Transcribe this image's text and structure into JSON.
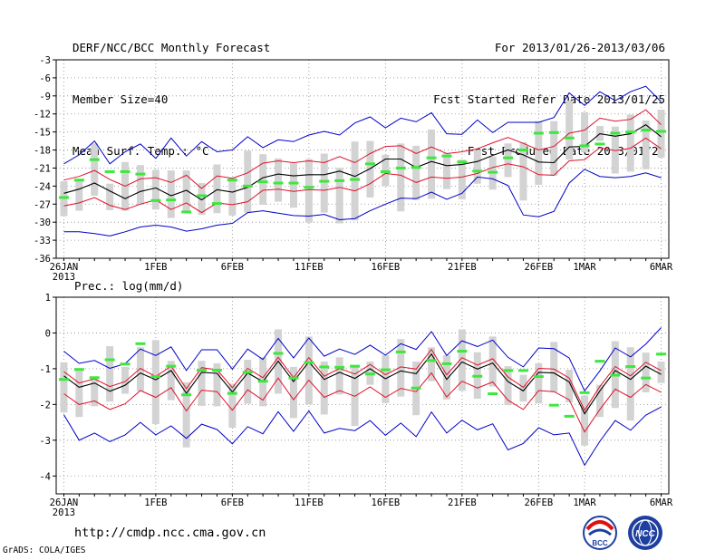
{
  "header": {
    "title": "DERF/NCC/BCC Monthly Forecast",
    "member_size": "Member Size=40",
    "variable": "Mean Surf. Temp.: °C",
    "period": "For 2013/01/26-2013/03/06",
    "fcst_started": "Fcst Started Refer Date 2013/01/25",
    "fcst_produced": "Fcst Produced Date 2013/01/26"
  },
  "footer": {
    "url": "http://cmdp.ncc.cma.gov.cn",
    "grads": "GrADS: COLA/IGES",
    "logo_left_text": "BCC",
    "logo_right_text": "NCC"
  },
  "colors": {
    "envelope": "#0000c8",
    "spread": "#e0102a",
    "mean": "#000000",
    "observed": "#3de83d",
    "box": "#d3d3d3",
    "grid": "#8c8c8c"
  },
  "chart_data": [
    {
      "type": "line",
      "title": "Mean Surf. Temp.: °C",
      "ylim": [
        -36,
        -3
      ],
      "yticks": [
        -3,
        -6,
        -9,
        -12,
        -15,
        -18,
        -21,
        -24,
        -27,
        -30,
        -33,
        -36
      ],
      "xlim": [
        -0.5,
        39.5
      ],
      "xticks": [
        {
          "i": 0,
          "label": "26JAN",
          "sub": "2013"
        },
        {
          "i": 6,
          "label": "1FEB"
        },
        {
          "i": 11,
          "label": "6FEB"
        },
        {
          "i": 16,
          "label": "11FEB"
        },
        {
          "i": 21,
          "label": "16FEB"
        },
        {
          "i": 26,
          "label": "21FEB"
        },
        {
          "i": 31,
          "label": "26FEB"
        },
        {
          "i": 34,
          "label": "1MAR"
        },
        {
          "i": 39,
          "label": "6MAR"
        }
      ],
      "series": [
        {
          "name": "mean",
          "values": [
            -25.2,
            -24.5,
            -23.5,
            -24.8,
            -26.1,
            -24.9,
            -24.3,
            -25.6,
            -24.7,
            -26.3,
            -24.6,
            -25.0,
            -24.2,
            -22.6,
            -22.0,
            -22.3,
            -22.1,
            -22.1,
            -21.5,
            -22.4,
            -21.1,
            -19.5,
            -19.5,
            -20.9,
            -19.9,
            -20.6,
            -20.4,
            -19.9,
            -18.9,
            -18.0,
            -18.8,
            -20.0,
            -20.1,
            -17.5,
            -17.4,
            -15.3,
            -15.7,
            -15.3,
            -13.8,
            -15.8
          ]
        },
        {
          "name": "upper",
          "values": [
            -23.0,
            -22.4,
            -21.4,
            -22.9,
            -24.0,
            -22.8,
            -22.6,
            -23.4,
            -22.2,
            -24.4,
            -22.3,
            -22.7,
            -21.8,
            -20.2,
            -19.8,
            -20.1,
            -19.8,
            -20.1,
            -19.1,
            -20.1,
            -18.6,
            -17.4,
            -17.3,
            -18.6,
            -17.5,
            -18.6,
            -18.3,
            -17.8,
            -16.8,
            -15.9,
            -16.9,
            -18.0,
            -17.4,
            -15.2,
            -14.7,
            -12.7,
            -13.2,
            -12.9,
            -11.3,
            -13.8
          ]
        },
        {
          "name": "lower",
          "values": [
            -27.3,
            -26.8,
            -25.9,
            -27.2,
            -27.9,
            -27.0,
            -26.3,
            -27.9,
            -26.8,
            -28.4,
            -26.8,
            -27.1,
            -26.6,
            -24.7,
            -24.5,
            -24.9,
            -24.6,
            -24.7,
            -24.2,
            -24.8,
            -23.6,
            -21.9,
            -22.2,
            -23.4,
            -22.5,
            -22.7,
            -22.5,
            -21.9,
            -20.9,
            -20.3,
            -20.8,
            -22.1,
            -22.2,
            -19.8,
            -19.6,
            -17.6,
            -18.1,
            -17.7,
            -16.0,
            -17.8
          ]
        },
        {
          "name": "max",
          "values": [
            -20.3,
            -18.8,
            -16.5,
            -20.3,
            -18.3,
            -17.0,
            -19.4,
            -16.0,
            -19.0,
            -16.6,
            -18.3,
            -18.0,
            -15.8,
            -17.6,
            -16.3,
            -16.6,
            -15.5,
            -14.9,
            -15.5,
            -13.5,
            -12.5,
            -14.3,
            -12.7,
            -13.3,
            -11.8,
            -15.3,
            -15.4,
            -13.0,
            -15.1,
            -13.4,
            -13.4,
            -13.4,
            -12.6,
            -8.5,
            -10.6,
            -8.3,
            -9.8,
            -8.3,
            -7.4,
            -10.0
          ]
        },
        {
          "name": "min",
          "values": [
            -31.6,
            -31.6,
            -31.9,
            -32.3,
            -31.6,
            -30.8,
            -30.5,
            -30.8,
            -31.5,
            -31.1,
            -30.5,
            -30.2,
            -28.4,
            -28.1,
            -28.5,
            -28.9,
            -29.0,
            -28.7,
            -29.6,
            -29.4,
            -28.1,
            -27.0,
            -26.0,
            -26.1,
            -25.0,
            -26.2,
            -25.2,
            -22.5,
            -22.8,
            -23.9,
            -28.8,
            -29.1,
            -28.2,
            -23.5,
            -21.2,
            -22.4,
            -22.6,
            -22.4,
            -21.8,
            -22.6
          ]
        },
        {
          "name": "box_top",
          "values": [
            -23.2,
            -22.8,
            -16.9,
            -23.6,
            -20.0,
            -20.5,
            -21.3,
            -21.4,
            -21.4,
            -23.5,
            -20.4,
            -22.6,
            -18.1,
            -18.7,
            -19.4,
            -20.2,
            -19.5,
            -18.6,
            -21.0,
            -16.6,
            -16.5,
            -18.8,
            -16.9,
            -17.3,
            -14.6,
            -18.5,
            -19.6,
            -18.0,
            -19.1,
            -16.9,
            -16.7,
            -13.2,
            -13.2,
            -9.8,
            -11.7,
            -14.0,
            -14.1,
            -12.1,
            -13.1,
            -11.3
          ]
        },
        {
          "name": "box_bottom",
          "values": [
            -29.0,
            -28.1,
            -25.6,
            -28.0,
            -28.1,
            -27.1,
            -27.9,
            -29.3,
            -28.2,
            -28.8,
            -28.5,
            -28.9,
            -28.4,
            -27.1,
            -26.6,
            -27.6,
            -30.1,
            -28.4,
            -30.2,
            -29.7,
            -25.9,
            -24.0,
            -28.2,
            -26.3,
            -26.1,
            -24.5,
            -26.2,
            -23.6,
            -24.6,
            -22.5,
            -26.4,
            -23.8,
            -22.3,
            -19.6,
            -18.4,
            -16.5,
            -21.9,
            -21.6,
            -21.2,
            -19.3
          ]
        },
        {
          "name": "observed",
          "values": [
            -25.9,
            -23.0,
            -19.6,
            -21.6,
            -21.6,
            -22.0,
            -26.4,
            -26.3,
            -28.3,
            -25.6,
            -26.9,
            -23.0,
            -24.0,
            -23.3,
            -23.5,
            -23.5,
            -24.2,
            -23.2,
            -23.1,
            -22.9,
            -20.3,
            -21.6,
            -21.0,
            -20.9,
            -19.3,
            -19.0,
            -20.0,
            -21.5,
            -21.7,
            -19.3,
            -18.0,
            -15.2,
            -15.1,
            -16.0,
            -17.3,
            -17.0,
            -15.2,
            -15.0,
            -14.7,
            -14.9
          ]
        }
      ]
    },
    {
      "type": "line",
      "title": "Prec.: log(mm/d)",
      "ylim": [
        -4.5,
        1
      ],
      "yticks": [
        1,
        0,
        -1,
        -2,
        -3,
        -4
      ],
      "xlim": [
        -0.5,
        39.5
      ],
      "xticks": [
        {
          "i": 0,
          "label": "26JAN",
          "sub": "2013"
        },
        {
          "i": 6,
          "label": "1FEB"
        },
        {
          "i": 11,
          "label": "6FEB"
        },
        {
          "i": 16,
          "label": "11FEB"
        },
        {
          "i": 21,
          "label": "16FEB"
        },
        {
          "i": 26,
          "label": "21FEB"
        },
        {
          "i": 31,
          "label": "26FEB"
        },
        {
          "i": 34,
          "label": "1MAR"
        },
        {
          "i": 39,
          "label": "6MAR"
        }
      ],
      "series": [
        {
          "name": "mean",
          "values": [
            -1.2,
            -1.52,
            -1.4,
            -1.63,
            -1.46,
            -1.12,
            -1.31,
            -1.05,
            -1.69,
            -1.1,
            -1.13,
            -1.65,
            -1.12,
            -1.36,
            -0.79,
            -1.36,
            -0.81,
            -1.3,
            -1.1,
            -1.27,
            -1.0,
            -1.28,
            -1.06,
            -1.14,
            -0.59,
            -1.3,
            -0.81,
            -1.01,
            -0.84,
            -1.36,
            -1.62,
            -1.1,
            -1.12,
            -1.37,
            -2.26,
            -1.62,
            -1.05,
            -1.3,
            -0.93,
            -1.16
          ]
        },
        {
          "name": "upper",
          "values": [
            -1.08,
            -1.4,
            -1.28,
            -1.5,
            -1.36,
            -0.99,
            -1.22,
            -0.93,
            -1.56,
            -0.97,
            -1.03,
            -1.53,
            -0.99,
            -1.25,
            -0.68,
            -1.25,
            -0.69,
            -1.21,
            -0.99,
            -1.15,
            -0.88,
            -1.17,
            -0.95,
            -1.01,
            -0.46,
            -1.17,
            -0.69,
            -0.9,
            -0.72,
            -1.23,
            -1.52,
            -0.99,
            -1.01,
            -1.26,
            -2.16,
            -1.5,
            -0.94,
            -1.2,
            -0.82,
            -1.05
          ]
        },
        {
          "name": "lower",
          "values": [
            -1.7,
            -2.0,
            -1.9,
            -2.14,
            -1.98,
            -1.61,
            -1.8,
            -1.53,
            -2.18,
            -1.6,
            -1.64,
            -2.16,
            -1.59,
            -1.88,
            -1.26,
            -1.87,
            -1.32,
            -1.8,
            -1.61,
            -1.77,
            -1.51,
            -1.8,
            -1.55,
            -1.64,
            -1.12,
            -1.79,
            -1.35,
            -1.54,
            -1.37,
            -1.88,
            -2.14,
            -1.61,
            -1.64,
            -1.87,
            -2.77,
            -2.14,
            -1.57,
            -1.8,
            -1.44,
            -1.66
          ]
        },
        {
          "name": "max",
          "values": [
            -0.51,
            -0.85,
            -0.77,
            -0.99,
            -0.86,
            -0.45,
            -0.63,
            -0.39,
            -1.05,
            -0.47,
            -0.47,
            -1.01,
            -0.45,
            -0.74,
            -0.15,
            -0.7,
            -0.14,
            -0.65,
            -0.45,
            -0.6,
            -0.34,
            -0.62,
            -0.3,
            -0.46,
            0.04,
            -0.63,
            -0.22,
            -0.38,
            -0.2,
            -0.68,
            -0.95,
            -0.42,
            -0.44,
            -0.7,
            -1.62,
            -1.06,
            -0.42,
            -0.67,
            -0.31,
            0.15
          ]
        },
        {
          "name": "min",
          "values": [
            -2.29,
            -3.0,
            -2.8,
            -3.04,
            -2.85,
            -2.5,
            -2.85,
            -2.6,
            -2.95,
            -2.55,
            -2.7,
            -3.1,
            -2.62,
            -2.82,
            -2.2,
            -2.75,
            -2.18,
            -2.8,
            -2.67,
            -2.73,
            -2.45,
            -2.86,
            -2.52,
            -2.9,
            -2.21,
            -2.8,
            -2.44,
            -2.71,
            -2.54,
            -3.27,
            -3.09,
            -2.65,
            -2.85,
            -2.8,
            -3.7,
            -3.03,
            -2.45,
            -2.72,
            -2.3,
            -2.07
          ]
        },
        {
          "name": "box_top",
          "values": [
            -0.82,
            -1.02,
            -1.3,
            -0.37,
            -0.95,
            -0.4,
            -0.2,
            -0.78,
            -1.38,
            -0.78,
            -0.85,
            -1.42,
            -0.75,
            -0.68,
            0.1,
            -0.95,
            -0.1,
            -0.8,
            -0.68,
            -0.93,
            -0.8,
            -0.62,
            -0.17,
            -0.8,
            -0.4,
            -0.62,
            0.1,
            -0.54,
            -0.1,
            -0.93,
            -1.17,
            -0.85,
            -0.25,
            -1.03,
            -1.75,
            -1.45,
            -0.23,
            -0.4,
            -0.55,
            -0.8
          ]
        },
        {
          "name": "box_bottom",
          "values": [
            -2.22,
            -2.35,
            -2.05,
            -1.92,
            -1.7,
            -1.63,
            -2.55,
            -1.88,
            -3.2,
            -2.04,
            -2.05,
            -2.65,
            -1.98,
            -2.05,
            -1.7,
            -2.38,
            -2.0,
            -2.28,
            -1.72,
            -2.6,
            -1.45,
            -1.96,
            -1.78,
            -2.3,
            -1.35,
            -1.86,
            -1.62,
            -1.84,
            -1.5,
            -2.02,
            -1.92,
            -1.97,
            -1.66,
            -1.94,
            -3.15,
            -2.35,
            -2.1,
            -2.45,
            -1.66,
            -1.4
          ]
        },
        {
          "name": "observed",
          "values": [
            -1.3,
            -1.02,
            -1.25,
            -0.75,
            -0.87,
            -0.3,
            -1.22,
            -0.93,
            -1.73,
            -1.04,
            -1.04,
            -1.69,
            -1.1,
            -1.35,
            -0.57,
            -1.26,
            -0.83,
            -0.95,
            -0.96,
            -0.93,
            -1.15,
            -1.03,
            -0.53,
            -1.54,
            -0.77,
            -0.86,
            -0.51,
            -1.21,
            -1.7,
            -1.05,
            -1.05,
            -1.22,
            -2.02,
            -2.33,
            -1.67,
            -0.79,
            -1.18,
            -0.94,
            -1.26,
            -0.59
          ]
        }
      ]
    }
  ]
}
